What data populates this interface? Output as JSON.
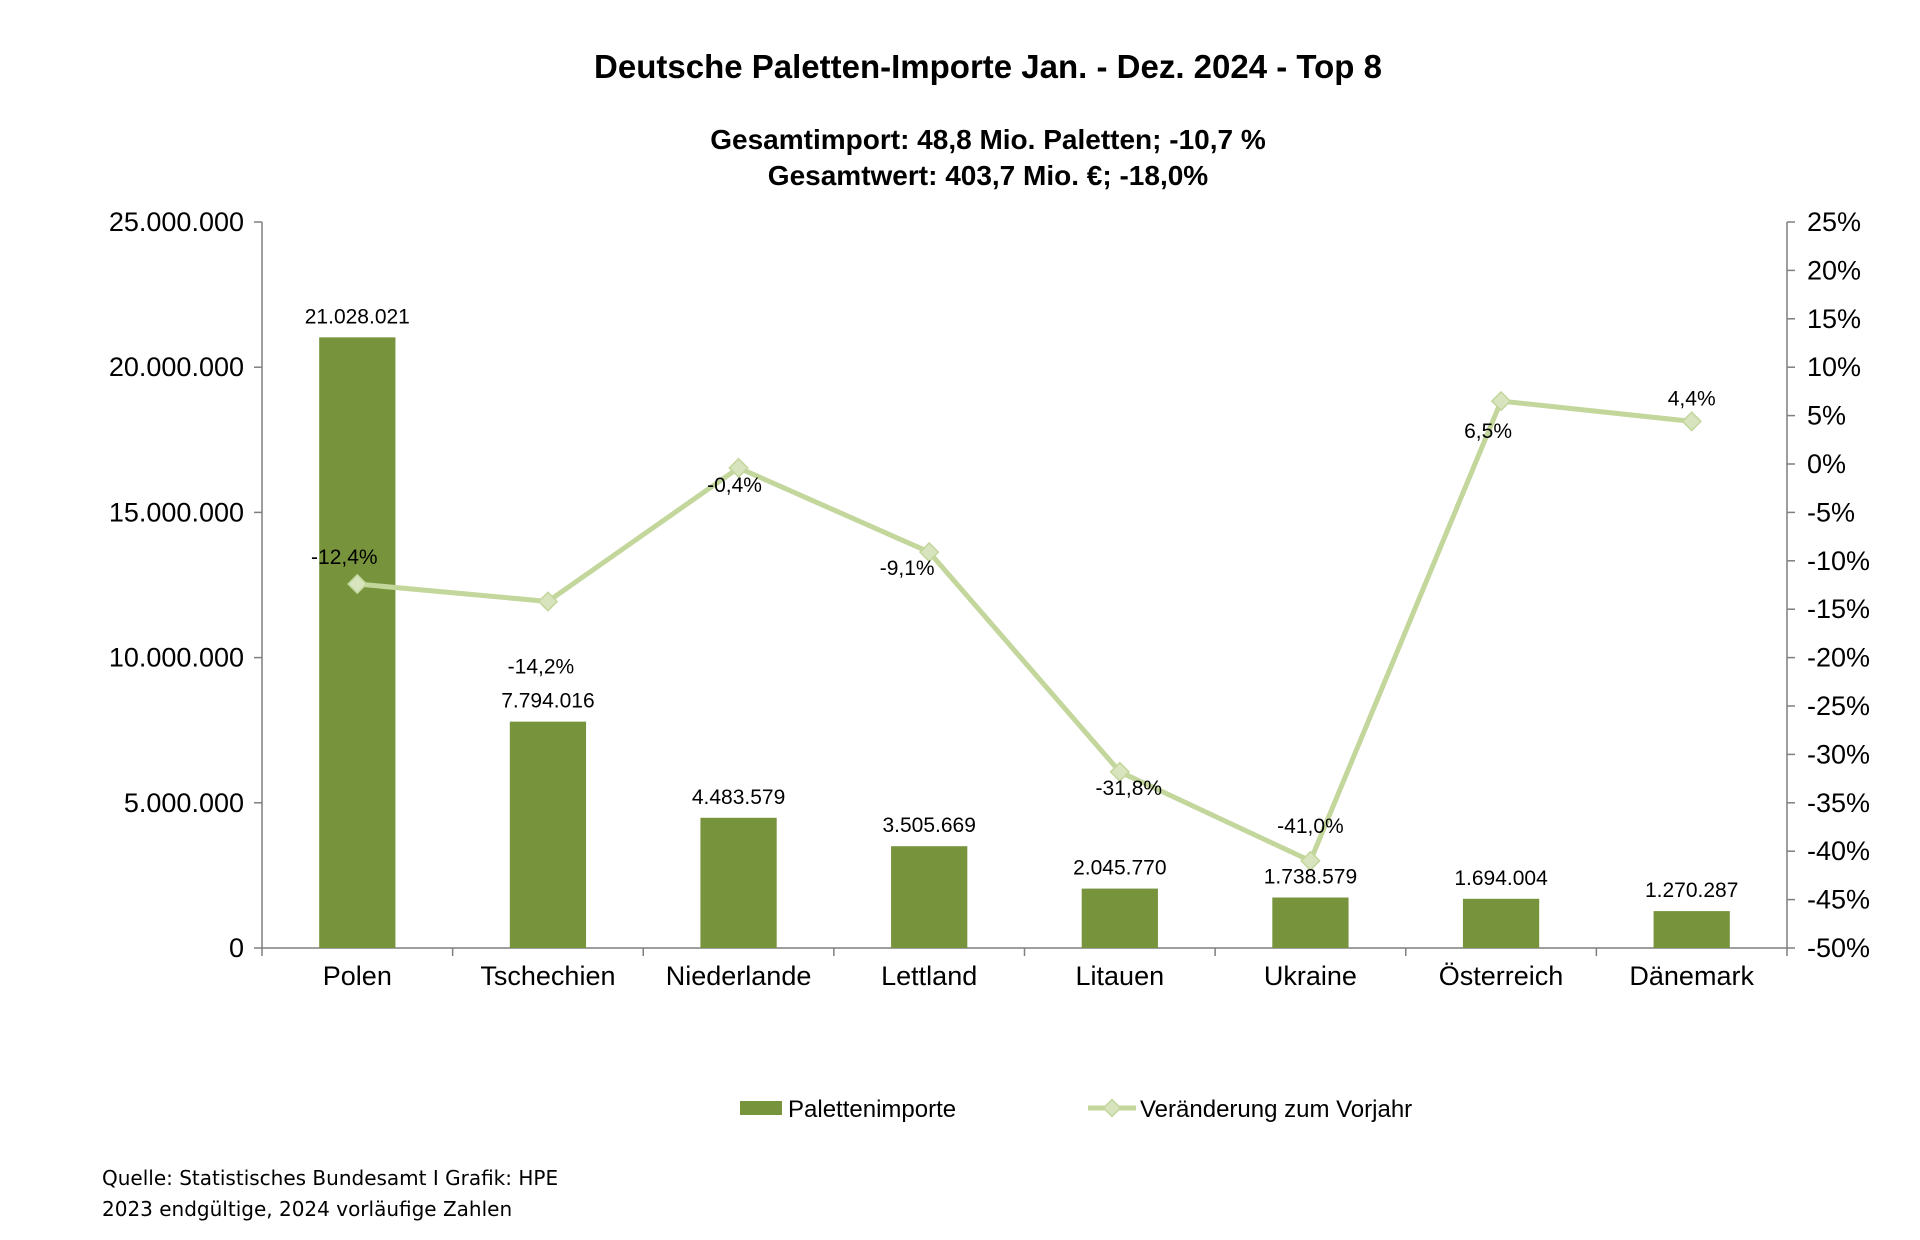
{
  "colors": {
    "bar": "#77933c",
    "line": "#c3d69b",
    "axis": "#7f7f7f"
  },
  "chart_data": {
    "type": "bar",
    "title": "Deutsche Paletten-Importe Jan. - Dez. 2024 - Top 8",
    "subtitle_line1": "Gesamtimport: 48,8 Mio. Paletten;  -10,7 %",
    "subtitle_line2": "Gesamtwert: 403,7 Mio. €; -18,0%",
    "categories": [
      "Polen",
      "Tschechien",
      "Niederlande",
      "Lettland",
      "Litauen",
      "Ukraine",
      "Österreich",
      "Dänemark"
    ],
    "series": [
      {
        "name": "Palettenimporte",
        "type": "bar",
        "axis": "left",
        "values": [
          21028021,
          7794016,
          4483579,
          3505669,
          2045770,
          1738579,
          1694004,
          1270287
        ],
        "labels": [
          "21.028.021",
          "7.794.016",
          "4.483.579",
          "3.505.669",
          "2.045.770",
          "1.738.579",
          "1.694.004",
          "1.270.287"
        ]
      },
      {
        "name": "Veränderung zum Vorjahr",
        "type": "line",
        "axis": "right",
        "values": [
          -12.4,
          -14.2,
          -0.4,
          -9.1,
          -31.8,
          -41.0,
          6.5,
          4.4
        ],
        "labels": [
          "-12,4%",
          "-14,2%",
          "-0,4%",
          "-9,1%",
          "-31,8%",
          "-41,0%",
          "6,5%",
          "4,4%"
        ]
      }
    ],
    "y_left": {
      "ylim": [
        0,
        25000000
      ],
      "ticks": [
        "0",
        "5.000.000",
        "10.000.000",
        "15.000.000",
        "20.000.000",
        "25.000.000"
      ]
    },
    "y_right": {
      "ylim": [
        -50,
        25
      ],
      "ticks": [
        "-50%",
        "-45%",
        "-40%",
        "-35%",
        "-30%",
        "-25%",
        "-20%",
        "-15%",
        "-10%",
        "-5%",
        "0%",
        "5%",
        "10%",
        "15%",
        "20%",
        "25%"
      ]
    },
    "grid": false,
    "legend_position": "bottom"
  },
  "source": {
    "line1": "Quelle: Statistisches Bundesamt I Grafik: HPE",
    "line2": "2023 endgültige, 2024 vorläufige Zahlen"
  }
}
